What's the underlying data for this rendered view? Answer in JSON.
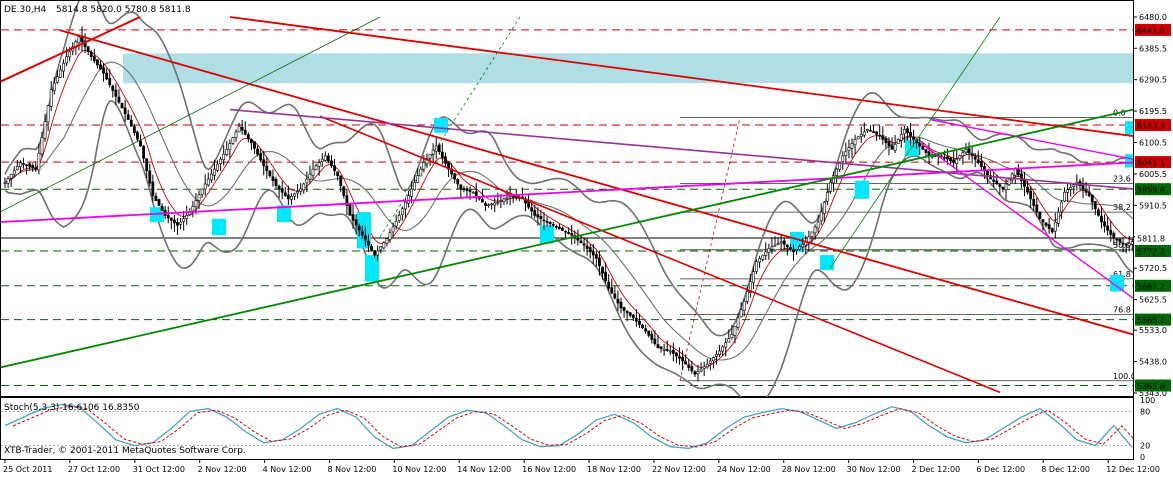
{
  "header": {
    "symbol_line": "DE.30,H4",
    "ohlc": "5814.8 5820.0 5780.8 5811.8",
    "stoch_label": "Stoch(5,3,3) 16.6106 16.8350",
    "copyright": "XTB-Trader, © 2001-2011 MetaQuotes Software Corp."
  },
  "colors": {
    "background": "#ffffff",
    "bull_candle": "#ffffff",
    "bear_candle": "#000000",
    "red_level": "#cc0000",
    "green_level": "#006600",
    "trend_red": "#dd0000",
    "trend_magenta": "#ee00ee",
    "trend_purple": "#993399",
    "trend_green": "#008800",
    "bollinger": "#707070",
    "zone": "#7cc8d4",
    "cyan_box": "#00e8ff",
    "stoch_main": "#48a4c8",
    "stoch_signal": "#dd0000"
  },
  "chart_data": {
    "type": "candlestick",
    "instrument": "DE.30",
    "timeframe": "H4",
    "ylim": [
      5343.0,
      6480.0
    ],
    "y_ticks": [
      "6480.0",
      "6385.5",
      "6290.5",
      "6195.5",
      "6100.5",
      "6005.5",
      "5910.5",
      "5815.5",
      "5720.5",
      "5625.5",
      "5533.0",
      "5438.0",
      "5343.0"
    ],
    "x_ticks": [
      "25 Oct 2011",
      "27 Oct 12:00",
      "31 Oct 12:00",
      "2 Nov 12:00",
      "4 Nov 12:00",
      "8 Nov 12:00",
      "10 Nov 12:00",
      "14 Nov 12:00",
      "16 Nov 12:00",
      "18 Nov 12:00",
      "22 Nov 12:00",
      "24 Nov 12:00",
      "28 Nov 12:00",
      "30 Nov 12:00",
      "2 Dec 12:00",
      "6 Dec 12:00",
      "8 Dec 12:00",
      "12 Dec 12:00"
    ],
    "levels": [
      {
        "value": 6441.0,
        "label": "6441.0",
        "color": "red"
      },
      {
        "value": 6153.3,
        "label": "6153.3",
        "color": "red"
      },
      {
        "value": 6041.1,
        "label": "6041.1",
        "color": "red"
      },
      {
        "value": 5959.4,
        "label": "5959.4",
        "color": "green"
      },
      {
        "value": 5811.8,
        "label": "5811.8",
        "color": "black"
      },
      {
        "value": 5772.3,
        "label": "5772.3",
        "color": "green"
      },
      {
        "value": 5667.2,
        "label": "5667.2",
        "color": "green"
      },
      {
        "value": 5565.1,
        "label": "5565.1",
        "color": "green"
      },
      {
        "value": 5365.8,
        "label": "5365.8",
        "color": "green"
      }
    ],
    "fibonacci": [
      {
        "label": "0.0",
        "value": 6176.0
      },
      {
        "label": "23.6",
        "value": 5977.0
      },
      {
        "label": "38.2",
        "value": 5890.0
      },
      {
        "label": "50.0",
        "value": 5776.0
      },
      {
        "label": "61.8",
        "value": 5688.0
      },
      {
        "label": "76.8",
        "value": 5580.0
      },
      {
        "label": "100.0",
        "value": 5380.0
      }
    ],
    "close_path": [
      [
        0,
        5980
      ],
      [
        5,
        6040
      ],
      [
        10,
        6020
      ],
      [
        15,
        6260
      ],
      [
        20,
        6360
      ],
      [
        24,
        6420
      ],
      [
        28,
        6360
      ],
      [
        32,
        6310
      ],
      [
        36,
        6240
      ],
      [
        40,
        6170
      ],
      [
        44,
        6090
      ],
      [
        48,
        5940
      ],
      [
        52,
        5880
      ],
      [
        56,
        5850
      ],
      [
        60,
        5890
      ],
      [
        64,
        5960
      ],
      [
        68,
        6020
      ],
      [
        72,
        6080
      ],
      [
        76,
        6150
      ],
      [
        80,
        6100
      ],
      [
        84,
        6030
      ],
      [
        88,
        5970
      ],
      [
        92,
        5930
      ],
      [
        96,
        5960
      ],
      [
        100,
        6020
      ],
      [
        104,
        6060
      ],
      [
        108,
        6000
      ],
      [
        112,
        5880
      ],
      [
        116,
        5820
      ],
      [
        120,
        5760
      ],
      [
        124,
        5810
      ],
      [
        128,
        5880
      ],
      [
        132,
        5960
      ],
      [
        136,
        6040
      ],
      [
        140,
        6090
      ],
      [
        144,
        6020
      ],
      [
        148,
        5960
      ],
      [
        152,
        5950
      ],
      [
        156,
        5910
      ],
      [
        160,
        5920
      ],
      [
        164,
        5940
      ],
      [
        168,
        5930
      ],
      [
        172,
        5880
      ],
      [
        176,
        5860
      ],
      [
        180,
        5840
      ],
      [
        184,
        5820
      ],
      [
        188,
        5790
      ],
      [
        192,
        5750
      ],
      [
        196,
        5660
      ],
      [
        200,
        5600
      ],
      [
        204,
        5570
      ],
      [
        208,
        5530
      ],
      [
        212,
        5480
      ],
      [
        216,
        5470
      ],
      [
        220,
        5440
      ],
      [
        224,
        5400
      ],
      [
        228,
        5430
      ],
      [
        232,
        5470
      ],
      [
        236,
        5520
      ],
      [
        240,
        5620
      ],
      [
        244,
        5740
      ],
      [
        248,
        5780
      ],
      [
        252,
        5800
      ],
      [
        256,
        5770
      ],
      [
        260,
        5800
      ],
      [
        264,
        5860
      ],
      [
        268,
        5980
      ],
      [
        272,
        6060
      ],
      [
        276,
        6110
      ],
      [
        280,
        6140
      ],
      [
        284,
        6120
      ],
      [
        288,
        6080
      ],
      [
        292,
        6140
      ],
      [
        296,
        6100
      ],
      [
        300,
        6060
      ],
      [
        304,
        6060
      ],
      [
        308,
        6040
      ],
      [
        312,
        6080
      ],
      [
        316,
        6040
      ],
      [
        320,
        5990
      ],
      [
        324,
        5960
      ],
      [
        328,
        6020
      ],
      [
        332,
        5950
      ],
      [
        336,
        5870
      ],
      [
        340,
        5830
      ],
      [
        344,
        5950
      ],
      [
        348,
        5980
      ],
      [
        352,
        5940
      ],
      [
        356,
        5860
      ],
      [
        360,
        5810
      ],
      [
        364,
        5790
      ],
      [
        368,
        5812
      ]
    ],
    "stochastic": {
      "name": "Stoch(5,3,3)",
      "main": 16.6106,
      "signal": 16.835,
      "ylim": [
        0,
        100
      ],
      "y_ticks": [
        "100",
        "80",
        "20",
        "0"
      ],
      "series": [
        [
          0,
          55
        ],
        [
          6,
          70
        ],
        [
          12,
          85
        ],
        [
          18,
          92
        ],
        [
          24,
          88
        ],
        [
          30,
          60
        ],
        [
          36,
          30
        ],
        [
          42,
          20
        ],
        [
          48,
          25
        ],
        [
          54,
          50
        ],
        [
          60,
          80
        ],
        [
          66,
          85
        ],
        [
          72,
          70
        ],
        [
          78,
          45
        ],
        [
          84,
          25
        ],
        [
          90,
          30
        ],
        [
          96,
          50
        ],
        [
          102,
          75
        ],
        [
          108,
          85
        ],
        [
          114,
          70
        ],
        [
          120,
          35
        ],
        [
          126,
          15
        ],
        [
          132,
          20
        ],
        [
          138,
          45
        ],
        [
          144,
          70
        ],
        [
          150,
          82
        ],
        [
          156,
          78
        ],
        [
          162,
          55
        ],
        [
          168,
          30
        ],
        [
          174,
          18
        ],
        [
          180,
          20
        ],
        [
          186,
          40
        ],
        [
          192,
          65
        ],
        [
          198,
          75
        ],
        [
          204,
          60
        ],
        [
          210,
          35
        ],
        [
          216,
          18
        ],
        [
          222,
          15
        ],
        [
          228,
          25
        ],
        [
          234,
          50
        ],
        [
          240,
          70
        ],
        [
          246,
          78
        ],
        [
          252,
          85
        ],
        [
          258,
          80
        ],
        [
          264,
          65
        ],
        [
          270,
          50
        ],
        [
          276,
          60
        ],
        [
          282,
          75
        ],
        [
          288,
          88
        ],
        [
          294,
          80
        ],
        [
          300,
          55
        ],
        [
          306,
          35
        ],
        [
          312,
          25
        ],
        [
          318,
          30
        ],
        [
          324,
          50
        ],
        [
          330,
          70
        ],
        [
          336,
          85
        ],
        [
          342,
          60
        ],
        [
          348,
          30
        ],
        [
          354,
          20
        ],
        [
          360,
          55
        ],
        [
          366,
          16.6
        ]
      ]
    }
  }
}
